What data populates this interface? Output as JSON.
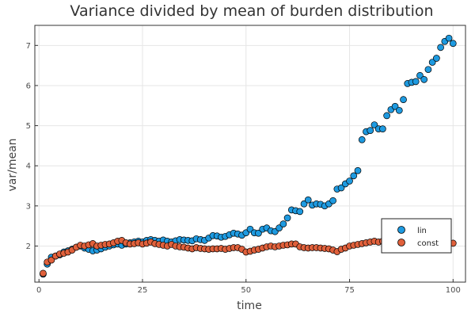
{
  "chart_data": {
    "type": "scatter",
    "title": "Variance divided by mean of burden distribution",
    "xlabel": "time",
    "ylabel": "var/mean",
    "xlim": [
      -1,
      103
    ],
    "ylim": [
      1.1,
      7.5
    ],
    "x_ticks": [
      0,
      25,
      50,
      75,
      100
    ],
    "y_ticks": [
      2,
      3,
      4,
      5,
      6,
      7
    ],
    "grid": true,
    "legend_position": "bottom-right",
    "series": [
      {
        "name": "lin",
        "color": "#1e9ae0",
        "x": [
          1,
          2,
          3,
          4,
          5,
          6,
          7,
          8,
          9,
          10,
          11,
          12,
          13,
          14,
          15,
          16,
          17,
          18,
          19,
          20,
          21,
          22,
          23,
          24,
          25,
          26,
          27,
          28,
          29,
          30,
          31,
          32,
          33,
          34,
          35,
          36,
          37,
          38,
          39,
          40,
          41,
          42,
          43,
          44,
          45,
          46,
          47,
          48,
          49,
          50,
          51,
          52,
          53,
          54,
          55,
          56,
          57,
          58,
          59,
          60,
          61,
          62,
          63,
          64,
          65,
          66,
          67,
          68,
          69,
          70,
          71,
          72,
          73,
          74,
          75,
          76,
          77,
          78,
          79,
          80,
          81,
          82,
          83,
          84,
          85,
          86,
          87,
          88,
          89,
          90,
          91,
          92,
          93,
          94,
          95,
          96,
          97,
          98,
          99,
          100
        ],
        "y": [
          1.3,
          1.55,
          1.72,
          1.75,
          1.78,
          1.85,
          1.88,
          1.92,
          1.97,
          2.0,
          1.95,
          1.92,
          1.88,
          1.9,
          1.93,
          1.97,
          2.0,
          2.03,
          2.05,
          2.02,
          2.05,
          2.08,
          2.1,
          2.12,
          2.1,
          2.14,
          2.16,
          2.14,
          2.12,
          2.15,
          2.12,
          2.1,
          2.13,
          2.16,
          2.15,
          2.14,
          2.13,
          2.18,
          2.16,
          2.14,
          2.2,
          2.26,
          2.25,
          2.22,
          2.24,
          2.28,
          2.32,
          2.3,
          2.27,
          2.33,
          2.42,
          2.33,
          2.32,
          2.42,
          2.45,
          2.38,
          2.36,
          2.45,
          2.55,
          2.7,
          2.9,
          2.88,
          2.86,
          3.05,
          3.15,
          3.02,
          3.05,
          3.04,
          3.0,
          3.05,
          3.13,
          3.42,
          3.45,
          3.55,
          3.62,
          3.75,
          3.88,
          4.65,
          4.85,
          4.88,
          5.02,
          4.92,
          4.92,
          5.25,
          5.4,
          5.48,
          5.38,
          5.65,
          6.05,
          6.08,
          6.1,
          6.25,
          6.15,
          6.4,
          6.58,
          6.68,
          6.95,
          7.1,
          7.18,
          7.05
        ]
      },
      {
        "name": "const",
        "color": "#e0603b",
        "x": [
          1,
          2,
          3,
          4,
          5,
          6,
          7,
          8,
          9,
          10,
          11,
          12,
          13,
          14,
          15,
          16,
          17,
          18,
          19,
          20,
          21,
          22,
          23,
          24,
          25,
          26,
          27,
          28,
          29,
          30,
          31,
          32,
          33,
          34,
          35,
          36,
          37,
          38,
          39,
          40,
          41,
          42,
          43,
          44,
          45,
          46,
          47,
          48,
          49,
          50,
          51,
          52,
          53,
          54,
          55,
          56,
          57,
          58,
          59,
          60,
          61,
          62,
          63,
          64,
          65,
          66,
          67,
          68,
          69,
          70,
          71,
          72,
          73,
          74,
          75,
          76,
          77,
          78,
          79,
          80,
          81,
          82,
          83,
          84,
          85,
          86,
          87,
          88,
          89,
          90,
          91,
          92,
          93,
          94,
          95,
          96,
          97,
          98,
          99,
          100
        ],
        "y": [
          1.32,
          1.6,
          1.65,
          1.75,
          1.8,
          1.82,
          1.85,
          1.9,
          1.97,
          2.02,
          2.0,
          2.03,
          2.06,
          2.0,
          2.02,
          2.04,
          2.05,
          2.08,
          2.12,
          2.14,
          2.08,
          2.05,
          2.06,
          2.08,
          2.05,
          2.07,
          2.1,
          2.06,
          2.04,
          2.02,
          2.0,
          2.04,
          2.0,
          1.98,
          1.97,
          1.95,
          1.93,
          1.96,
          1.94,
          1.93,
          1.92,
          1.93,
          1.93,
          1.94,
          1.92,
          1.94,
          1.96,
          1.96,
          1.92,
          1.85,
          1.87,
          1.9,
          1.92,
          1.95,
          1.98,
          2.0,
          1.98,
          2.0,
          2.02,
          2.03,
          2.05,
          2.05,
          1.98,
          1.96,
          1.95,
          1.96,
          1.96,
          1.95,
          1.94,
          1.93,
          1.9,
          1.86,
          1.92,
          1.95,
          2.0,
          2.02,
          2.04,
          2.06,
          2.08,
          2.1,
          2.12,
          2.1,
          2.12,
          2.08,
          2.06,
          2.07,
          2.08,
          2.05,
          2.06,
          2.06,
          2.07,
          2.06,
          2.08,
          2.08,
          2.06,
          2.06,
          2.08,
          2.07,
          2.06,
          2.07
        ]
      }
    ]
  }
}
